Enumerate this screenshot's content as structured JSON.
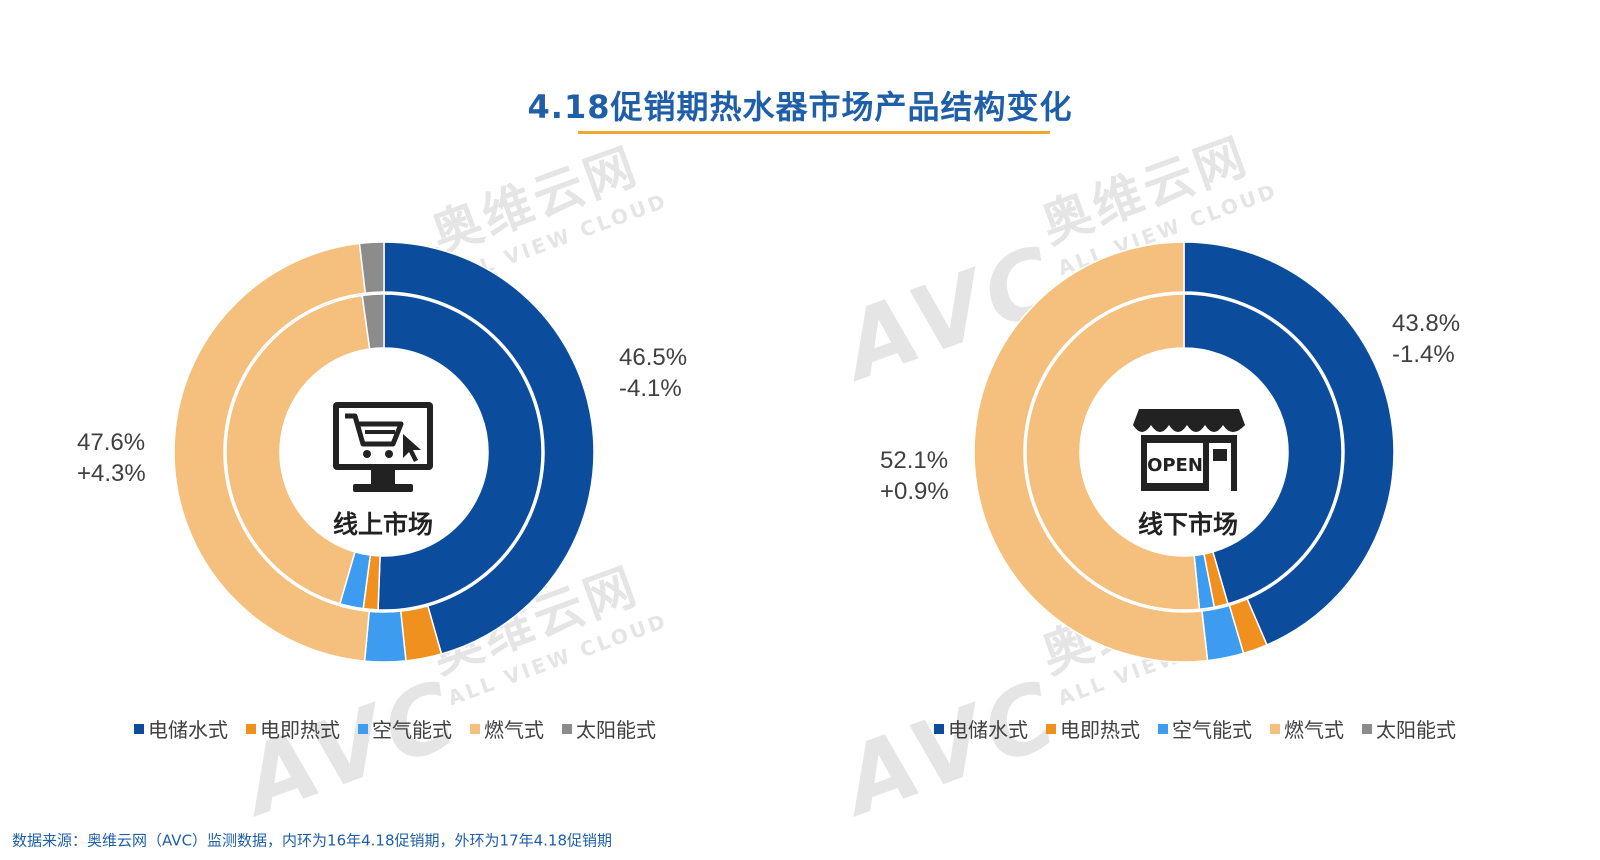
{
  "title": "4.18促销期热水器市场产品结构变化",
  "watermark": {
    "brand": "AVC",
    "cn": "奥维云网",
    "en": "ALL VIEW CLOUD"
  },
  "source_note": "数据来源：奥维云网（AVC）监测数据，内环为16年4.18促销期，外环为17年4.18促销期",
  "colors": {
    "电储水式": "#0b4c9c",
    "电即热式": "#f0901e",
    "空气能式": "#3d9bf0",
    "燃气式": "#f5c07d",
    "太阳能式": "#8c8c8c"
  },
  "charts": [
    {
      "center_label": "线上市场",
      "icon": "shopping-cart-monitor-icon",
      "labels": [
        {
          "value": "46.5%",
          "change": "-4.1%"
        },
        {
          "value": "47.6%",
          "change": "+4.3%"
        }
      ],
      "legend": [
        "电储水式",
        "电即热式",
        "空气能式",
        "燃气式",
        "太阳能式"
      ]
    },
    {
      "center_label": "线下市场",
      "icon": "open-store-icon",
      "icon_text": "OPEN",
      "labels": [
        {
          "value": "43.8%",
          "change": "-1.4%"
        },
        {
          "value": "52.1%",
          "change": "+0.9%"
        }
      ],
      "legend": [
        "电储水式",
        "电即热式",
        "空气能式",
        "燃气式",
        "太阳能式"
      ]
    }
  ],
  "chart_data": [
    {
      "type": "pie",
      "subtype": "double-donut",
      "title": "线上市场",
      "categories": [
        "电储水式",
        "电即热式",
        "空气能式",
        "燃气式",
        "太阳能式"
      ],
      "series": [
        {
          "name": "17年4.18促销期",
          "ring": "outer",
          "values": [
            46.5,
            2.8,
            3.2,
            47.6,
            1.9
          ]
        },
        {
          "name": "16年4.18促销期",
          "ring": "inner",
          "values": [
            50.6,
            1.5,
            2.4,
            43.3,
            2.2
          ]
        }
      ],
      "legend_position": "bottom"
    },
    {
      "type": "pie",
      "subtype": "double-donut",
      "title": "线下市场",
      "categories": [
        "电储水式",
        "电即热式",
        "空气能式",
        "燃气式",
        "太阳能式"
      ],
      "series": [
        {
          "name": "17年4.18促销期",
          "ring": "outer",
          "values": [
            43.8,
            1.9,
            2.8,
            52.1,
            0.0
          ]
        },
        {
          "name": "16年4.18促销期",
          "ring": "inner",
          "values": [
            45.2,
            1.4,
            1.5,
            51.2,
            0.0
          ]
        }
      ],
      "legend_position": "bottom"
    }
  ]
}
